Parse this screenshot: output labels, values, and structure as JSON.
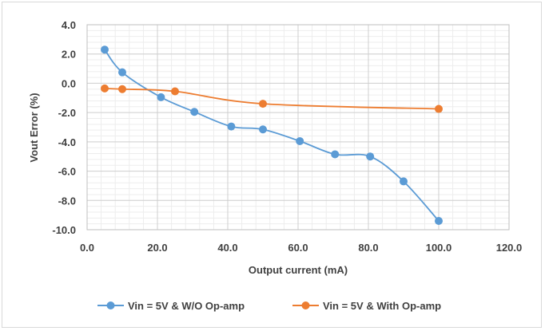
{
  "chart_data": {
    "type": "scatter",
    "xlabel": "Output current (mA)",
    "ylabel": "Vout Error (%)",
    "xlim": [
      0,
      120
    ],
    "ylim": [
      -10,
      4
    ],
    "xticks": [
      "0.0",
      "20.0",
      "40.0",
      "60.0",
      "80.0",
      "100.0",
      "120.0"
    ],
    "yticks": [
      "4.0",
      "2.0",
      "0.0",
      "-2.0",
      "-4.0",
      "-6.0",
      "-8.0",
      "-10.0"
    ],
    "grid": true,
    "legend_position": "bottom",
    "smooth_lines": true,
    "series": [
      {
        "name": "Vin = 5V & W/O Op-amp",
        "color": "#5b9bd5",
        "points": [
          {
            "x": 5,
            "y": 2.3
          },
          {
            "x": 10,
            "y": 0.75
          },
          {
            "x": 21,
            "y": -0.95
          },
          {
            "x": 30.5,
            "y": -1.95
          },
          {
            "x": 41,
            "y": -2.95
          },
          {
            "x": 50,
            "y": -3.15
          },
          {
            "x": 60.5,
            "y": -3.95
          },
          {
            "x": 70.5,
            "y": -4.85
          },
          {
            "x": 80.5,
            "y": -5.0
          },
          {
            "x": 90,
            "y": -6.7
          },
          {
            "x": 100,
            "y": -9.4
          }
        ]
      },
      {
        "name": "Vin = 5V & With Op-amp",
        "color": "#ed7d31",
        "points": [
          {
            "x": 5,
            "y": -0.35
          },
          {
            "x": 10,
            "y": -0.4
          },
          {
            "x": 25,
            "y": -0.55
          },
          {
            "x": 50,
            "y": -1.4
          },
          {
            "x": 100,
            "y": -1.75
          }
        ]
      }
    ]
  }
}
